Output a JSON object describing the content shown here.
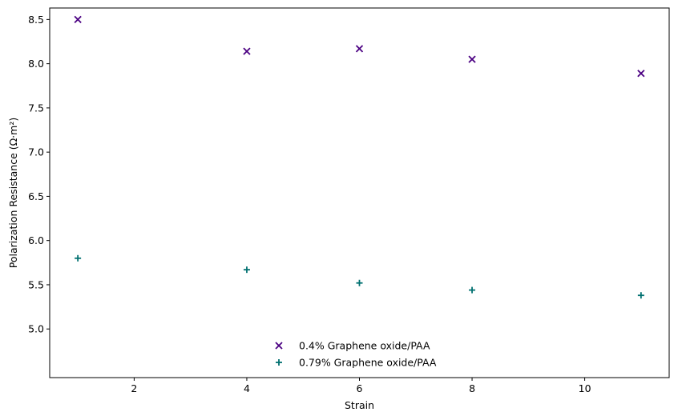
{
  "chart_data": {
    "type": "scatter",
    "xlabel": "Strain",
    "ylabel": "Polarization Resistance (Ω·m²)",
    "xlim": [
      0.5,
      11.5
    ],
    "ylim": [
      4.45,
      8.63
    ],
    "x_ticks": [
      2,
      4,
      6,
      8,
      10
    ],
    "y_ticks": [
      5.0,
      5.5,
      6.0,
      6.5,
      7.0,
      7.5,
      8.0,
      8.5
    ],
    "grid": false,
    "legend_position": "lower-center",
    "series": [
      {
        "name": "0.4% Graphene oxide/PAA",
        "marker": "x",
        "color": "#4b0082",
        "x": [
          1,
          4,
          6,
          8,
          11
        ],
        "y": [
          8.5,
          8.14,
          8.17,
          8.05,
          7.89
        ]
      },
      {
        "name": "0.79% Graphene oxide/PAA",
        "marker": "+",
        "color": "#007070",
        "x": [
          1,
          4,
          6,
          8,
          11
        ],
        "y": [
          5.8,
          5.67,
          5.52,
          5.44,
          5.38
        ]
      }
    ]
  }
}
